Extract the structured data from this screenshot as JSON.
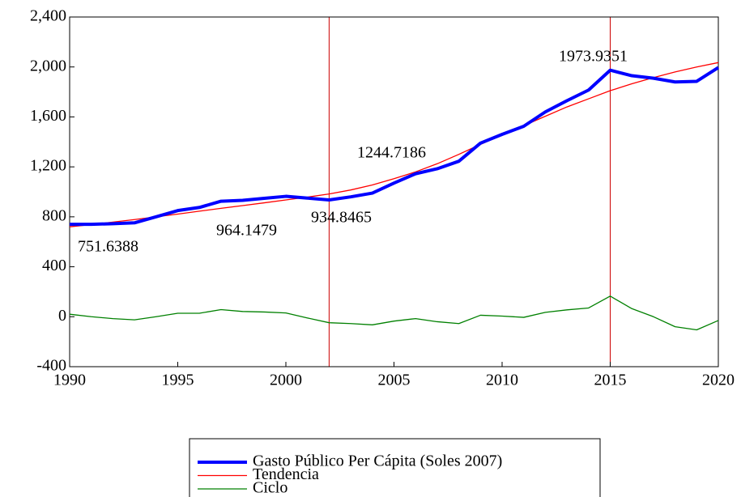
{
  "chart_data": {
    "type": "line",
    "x": [
      1990,
      1991,
      1992,
      1993,
      1994,
      1995,
      1996,
      1997,
      1998,
      1999,
      2000,
      2001,
      2002,
      2003,
      2004,
      2005,
      2006,
      2007,
      2008,
      2009,
      2010,
      2011,
      2012,
      2013,
      2014,
      2015,
      2016,
      2017,
      2018,
      2019,
      2020
    ],
    "series": [
      {
        "name": "Gasto Público Per Cápita (Soles 2007)",
        "color": "#0000ff",
        "width": 4,
        "values": [
          740,
          740,
          745,
          752,
          800,
          850,
          875,
          925,
          932,
          948,
          964,
          950,
          935,
          960,
          990,
          1070,
          1145,
          1185,
          1245,
          1390,
          1460,
          1525,
          1640,
          1730,
          1815,
          1974,
          1930,
          1910,
          1880,
          1885,
          1995
        ]
      },
      {
        "name": "Tendencia",
        "color": "#ff0000",
        "width": 1.3,
        "values": [
          720,
          738,
          758,
          778,
          800,
          822,
          845,
          868,
          890,
          912,
          935,
          958,
          983,
          1015,
          1055,
          1105,
          1160,
          1225,
          1300,
          1380,
          1455,
          1530,
          1605,
          1680,
          1745,
          1810,
          1865,
          1915,
          1960,
          2000,
          2035
        ]
      },
      {
        "name": "Ciclo",
        "color": "#008000",
        "width": 1.3,
        "values": [
          20,
          0,
          -15,
          -25,
          0,
          28,
          28,
          57,
          42,
          38,
          30,
          -10,
          -48,
          -55,
          -65,
          -35,
          -15,
          -40,
          -55,
          12,
          5,
          -5,
          35,
          55,
          70,
          165,
          65,
          0,
          -80,
          -105,
          -30
        ]
      }
    ],
    "xlim": [
      1990,
      2020
    ],
    "xticks": [
      1990,
      1995,
      2000,
      2005,
      2010,
      2015,
      2020
    ],
    "ylim": [
      -400,
      2400
    ],
    "yticks": [
      -400,
      0,
      400,
      800,
      {
        "value": 1200,
        "label": "1,200"
      },
      {
        "value": 1600,
        "label": "1,600"
      },
      {
        "value": 2000,
        "label": "2,000"
      },
      {
        "value": 2400,
        "label": "2,400"
      }
    ],
    "vlines": [
      1990,
      2002,
      2015
    ],
    "vline_color": "#cc0000",
    "annotations": [
      "751.6388",
      "964.1479",
      "934.8465",
      "1244.7186",
      "1973.9351"
    ]
  }
}
